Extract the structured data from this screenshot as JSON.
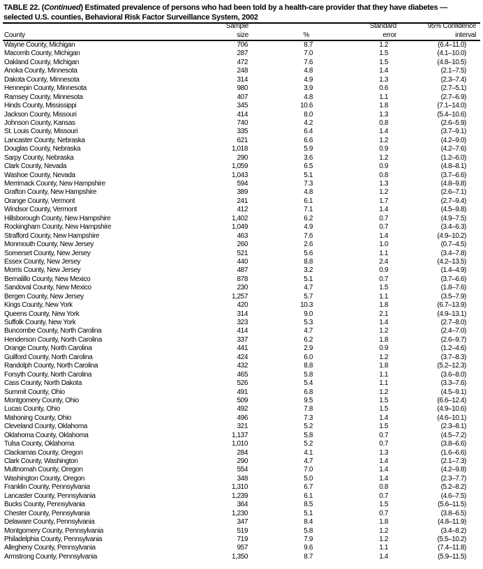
{
  "title": {
    "prefix": "TABLE 22. (",
    "continued": "Continued",
    "rest": ") Estimated prevalence of persons who had been told by a health-care provider that they have diabetes —",
    "line2": "selected U.S. counties, Behavioral Risk Factor Surveillance System, 2002"
  },
  "columns": {
    "county": "County",
    "sample_line1": "Sample",
    "sample_line2": "size",
    "pct": "%",
    "se_line1": "Standard",
    "se_line2": "error",
    "ci_line1": "95% Confidence",
    "ci_line2": "interval"
  },
  "rows": [
    [
      "Wayne County, Michigan",
      "706",
      "8.7",
      "1.2",
      "(6.4–11.0)"
    ],
    [
      "Macomb County, Michigan",
      "287",
      "7.0",
      "1.5",
      "(4.1–10.0)"
    ],
    [
      "Oakland County, Michigan",
      "472",
      "7.6",
      "1.5",
      "(4.8–10.5)"
    ],
    [
      "Anoka County, Minnesota",
      "248",
      "4.8",
      "1.4",
      "(2.1–7.5)"
    ],
    [
      "Dakota County, Minnesota",
      "314",
      "4.9",
      "1.3",
      "(2.3–7.4)"
    ],
    [
      "Hennepin County, Minnesota",
      "980",
      "3.9",
      "0.6",
      "(2.7–5.1)"
    ],
    [
      "Ramsey County, Minnesota",
      "407",
      "4.8",
      "1.1",
      "(2.7–6.9)"
    ],
    [
      "Hinds County, Mississippi",
      "345",
      "10.6",
      "1.8",
      "(7.1–14.0)"
    ],
    [
      "Jackson County, Missouri",
      "414",
      "8.0",
      "1.3",
      "(5.4–10.6)"
    ],
    [
      "Johnson County, Kansas",
      "740",
      "4.2",
      "0.8",
      "(2.6–5.9)"
    ],
    [
      "St. Louis County, Missouri",
      "335",
      "6.4",
      "1.4",
      "(3.7–9.1)"
    ],
    [
      "Lancaster County, Nebraska",
      "621",
      "6.6",
      "1.2",
      "(4.2–9.0)"
    ],
    [
      "Douglas County, Nebraska",
      "1,018",
      "5.9",
      "0.9",
      "(4.2–7.6)"
    ],
    [
      "Sarpy County, Nebraska",
      "290",
      "3.6",
      "1.2",
      "(1.2–6.0)"
    ],
    [
      "Clark County, Nevada",
      "1,059",
      "6.5",
      "0.9",
      "(4.8–8.1)"
    ],
    [
      "Washoe County, Nevada",
      "1,043",
      "5.1",
      "0.8",
      "(3.7–6.6)"
    ],
    [
      "Merrimack County, New Hampshire",
      "594",
      "7.3",
      "1.3",
      "(4.8–9.8)"
    ],
    [
      "Grafton County, New Hampshire",
      "389",
      "4.8",
      "1.2",
      "(2.6–7.1)"
    ],
    [
      "Orange County, Vermont",
      "241",
      "6.1",
      "1.7",
      "(2.7–9.4)"
    ],
    [
      "Windsor County, Vermont",
      "412",
      "7.1",
      "1.4",
      "(4.5–9.8)"
    ],
    [
      "Hillsborough County, New Hampshire",
      "1,402",
      "6.2",
      "0.7",
      "(4.9–7.5)"
    ],
    [
      "Rockingham County, New Hampshire",
      "1,049",
      "4.9",
      "0.7",
      "(3.4–6.3)"
    ],
    [
      "Strafford County, New Hampshire",
      "463",
      "7.6",
      "1.4",
      "(4.9–10.2)"
    ],
    [
      "Monmouth County, New Jersey",
      "260",
      "2.6",
      "1.0",
      "(0.7–4.5)"
    ],
    [
      "Somerset County, New Jersey",
      "521",
      "5.6",
      "1.1",
      "(3.4–7.8)"
    ],
    [
      "Essex County, New Jersey",
      "440",
      "8.8",
      "2.4",
      "(4.2–13.5)"
    ],
    [
      "Morris County, New Jersey",
      "487",
      "3.2",
      "0.9",
      "(1.4–4.9)"
    ],
    [
      "Bernalillo County, New Mexico",
      "878",
      "5.1",
      "0.7",
      "(3.7–6.6)"
    ],
    [
      "Sandoval County, New Mexico",
      "230",
      "4.7",
      "1.5",
      "(1.8–7.6)"
    ],
    [
      "Bergen County, New Jersey",
      "1,257",
      "5.7",
      "1.1",
      "(3.5–7.9)"
    ],
    [
      "Kings County, New York",
      "420",
      "10.3",
      "1.8",
      "(6.7–13.9)"
    ],
    [
      "Queens County, New York",
      "314",
      "9.0",
      "2.1",
      "(4.9–13.1)"
    ],
    [
      "Suffolk County, New York",
      "323",
      "5.3",
      "1.4",
      "(2.7–8.0)"
    ],
    [
      "Buncombe County, North Carolina",
      "414",
      "4.7",
      "1.2",
      "(2.4–7.0)"
    ],
    [
      "Henderson County, North Carolina",
      "337",
      "6.2",
      "1.8",
      "(2.6–9.7)"
    ],
    [
      "Orange County, North Carolina",
      "441",
      "2.9",
      "0.9",
      "(1.2–4.6)"
    ],
    [
      "Guilford County, North Carolina",
      "424",
      "6.0",
      "1.2",
      "(3.7–8.3)"
    ],
    [
      "Randolph County, North Carolina",
      "432",
      "8.8",
      "1.8",
      "(5.2–12.3)"
    ],
    [
      "Forsyth County, North Carolina",
      "465",
      "5.8",
      "1.1",
      "(3.6–8.0)"
    ],
    [
      "Cass County, North Dakota",
      "526",
      "5.4",
      "1.1",
      "(3.3–7.6)"
    ],
    [
      "Summit County, Ohio",
      "491",
      "6.8",
      "1.2",
      "(4.5–9.1)"
    ],
    [
      "Montgomery County, Ohio",
      "509",
      "9.5",
      "1.5",
      "(6.6–12.4)"
    ],
    [
      "Lucas County, Ohio",
      "492",
      "7.8",
      "1.5",
      "(4.9–10.6)"
    ],
    [
      "Mahoning County, Ohio",
      "496",
      "7.3",
      "1.4",
      "(4.6–10.1)"
    ],
    [
      "Cleveland County, Oklahoma",
      "321",
      "5.2",
      "1.5",
      "(2.3–8.1)"
    ],
    [
      "Oklahoma County, Oklahoma",
      "1,137",
      "5.8",
      "0.7",
      "(4.5–7.2)"
    ],
    [
      "Tulsa County, Oklahoma",
      "1,010",
      "5.2",
      "0.7",
      "(3.8–6.6)"
    ],
    [
      "Clackamas County, Oregon",
      "284",
      "4.1",
      "1.3",
      "(1.6–6.6)"
    ],
    [
      "Clark County, Washington",
      "290",
      "4.7",
      "1.4",
      "(2.1–7.3)"
    ],
    [
      "Multnomah County, Oregon",
      "554",
      "7.0",
      "1.4",
      "(4.2–9.8)"
    ],
    [
      "Washington County, Oregon",
      "348",
      "5.0",
      "1.4",
      "(2.3–7.7)"
    ],
    [
      "Franklin County, Pennsylvania",
      "1,310",
      "6.7",
      "0.8",
      "(5.2–8.2)"
    ],
    [
      "Lancaster County, Pennsylvania",
      "1,239",
      "6.1",
      "0.7",
      "(4.6–7.5)"
    ],
    [
      "Bucks County, Pennsylvania",
      "364",
      "8.5",
      "1.5",
      "(5.6–11.5)"
    ],
    [
      "Chester County, Pennsylvania",
      "1,230",
      "5.1",
      "0.7",
      "(3.8–6.5)"
    ],
    [
      "Delaware County, Pennsylvania",
      "347",
      "8.4",
      "1.8",
      "(4.8–11.9)"
    ],
    [
      "Montgomery County, Pennsylvania",
      "519",
      "5.8",
      "1.2",
      "(3.4–8.2)"
    ],
    [
      "Philadelphia County, Pennsylvania",
      "719",
      "7.9",
      "1.2",
      "(5.5–10.2)"
    ],
    [
      "Allegheny County, Pennsylvania",
      "957",
      "9.6",
      "1.1",
      "(7.4–11.8)"
    ],
    [
      "Armstrong County, Pennsylvania",
      "1,350",
      "8.7",
      "1.4",
      "(5.9–11.5)"
    ]
  ]
}
